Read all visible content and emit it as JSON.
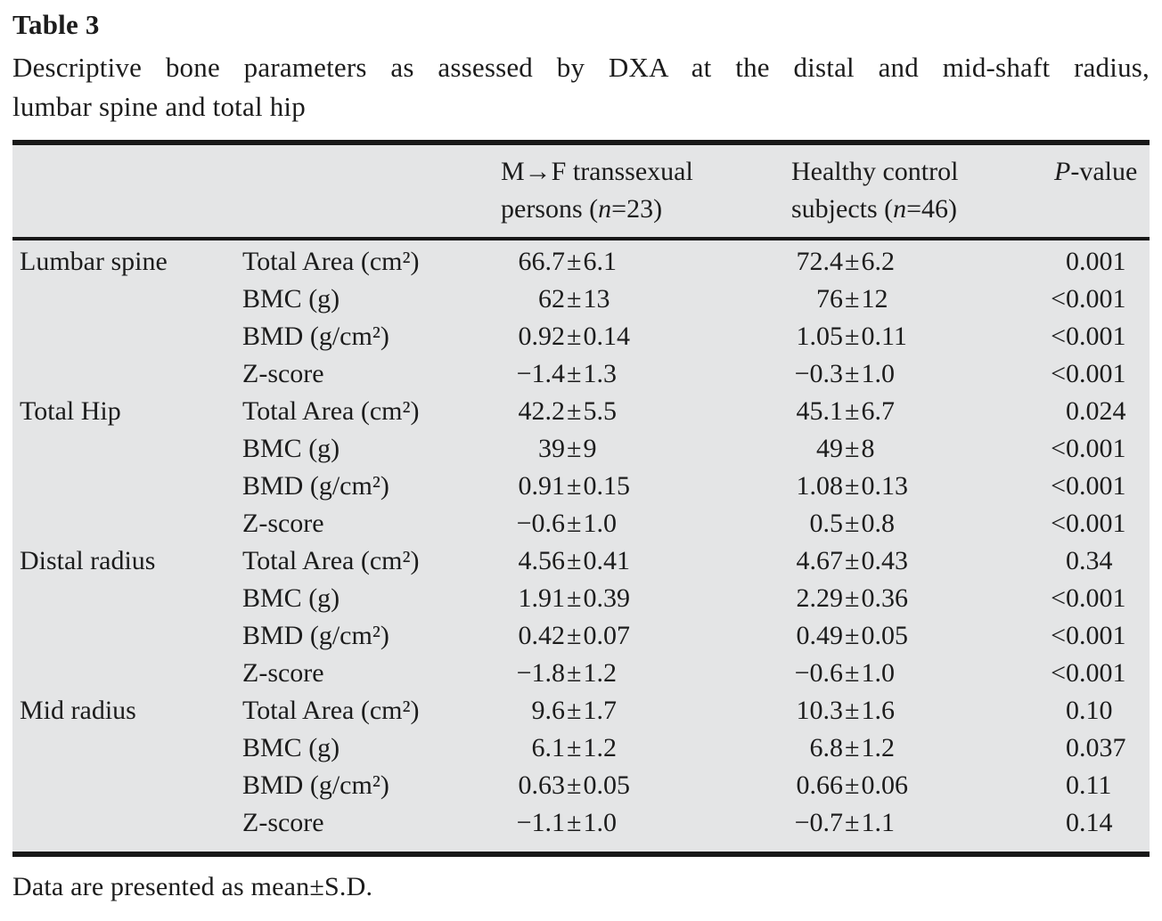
{
  "title": "Table 3",
  "caption": {
    "line1": "Descriptive bone parameters as assessed by DXA at the distal and mid-shaft radius,",
    "line2": "lumbar spine and total hip"
  },
  "footnote": "Data are presented as mean±S.D.",
  "table": {
    "pm": "±",
    "header": {
      "group1": {
        "line1": "M→F transsexual",
        "line2_pre": "persons (",
        "n": "n",
        "line2_post": "=23)"
      },
      "group2": {
        "line1": "Healthy control",
        "line2_pre": "subjects (",
        "n": "n",
        "line2_post": "=46)"
      },
      "pcol": {
        "p": "P",
        "suffix": "-value"
      }
    },
    "rows": [
      {
        "region": "Lumbar spine",
        "param": "Total Area (cm²)",
        "g1_mean": "66.7",
        "g1_sd": "6.1",
        "g2_mean": "72.4",
        "g2_sd": "6.2",
        "p_prefix": "",
        "p_value": "0.001"
      },
      {
        "region": "",
        "param": "BMC (g)",
        "g1_mean": "62",
        "g1_sd": "13",
        "g2_mean": "76",
        "g2_sd": "12",
        "p_prefix": "<",
        "p_value": "0.001"
      },
      {
        "region": "",
        "param": "BMD (g/cm²)",
        "g1_mean": "0.92",
        "g1_sd": "0.14",
        "g2_mean": "1.05",
        "g2_sd": "0.11",
        "p_prefix": "<",
        "p_value": "0.001"
      },
      {
        "region": "",
        "param": "Z-score",
        "g1_mean": "−1.4",
        "g1_sd": "1.3",
        "g2_mean": "−0.3",
        "g2_sd": "1.0",
        "p_prefix": "<",
        "p_value": "0.001"
      },
      {
        "region": "Total Hip",
        "param": "Total Area (cm²)",
        "g1_mean": "42.2",
        "g1_sd": "5.5",
        "g2_mean": "45.1",
        "g2_sd": "6.7",
        "p_prefix": "",
        "p_value": "0.024"
      },
      {
        "region": "",
        "param": "BMC (g)",
        "g1_mean": "39",
        "g1_sd": "9",
        "g2_mean": "49",
        "g2_sd": "8",
        "p_prefix": "<",
        "p_value": "0.001"
      },
      {
        "region": "",
        "param": "BMD (g/cm²)",
        "g1_mean": "0.91",
        "g1_sd": "0.15",
        "g2_mean": "1.08",
        "g2_sd": "0.13",
        "p_prefix": "<",
        "p_value": "0.001"
      },
      {
        "region": "",
        "param": "Z-score",
        "g1_mean": "−0.6",
        "g1_sd": "1.0",
        "g2_mean": "0.5",
        "g2_sd": "0.8",
        "p_prefix": "<",
        "p_value": "0.001"
      },
      {
        "region": "Distal radius",
        "param": "Total Area (cm²)",
        "g1_mean": "4.56",
        "g1_sd": "0.41",
        "g2_mean": "4.67",
        "g2_sd": "0.43",
        "p_prefix": "",
        "p_value": "0.34"
      },
      {
        "region": "",
        "param": "BMC (g)",
        "g1_mean": "1.91",
        "g1_sd": "0.39",
        "g2_mean": "2.29",
        "g2_sd": "0.36",
        "p_prefix": "<",
        "p_value": "0.001"
      },
      {
        "region": "",
        "param": "BMD (g/cm²)",
        "g1_mean": "0.42",
        "g1_sd": "0.07",
        "g2_mean": "0.49",
        "g2_sd": "0.05",
        "p_prefix": "<",
        "p_value": "0.001"
      },
      {
        "region": "",
        "param": "Z-score",
        "g1_mean": "−1.8",
        "g1_sd": "1.2",
        "g2_mean": "−0.6",
        "g2_sd": "1.0",
        "p_prefix": "<",
        "p_value": "0.001"
      },
      {
        "region": "Mid radius",
        "param": "Total Area (cm²)",
        "g1_mean": "9.6",
        "g1_sd": "1.7",
        "g2_mean": "10.3",
        "g2_sd": "1.6",
        "p_prefix": "",
        "p_value": "0.10"
      },
      {
        "region": "",
        "param": "BMC (g)",
        "g1_mean": "6.1",
        "g1_sd": "1.2",
        "g2_mean": "6.8",
        "g2_sd": "1.2",
        "p_prefix": "",
        "p_value": "0.037"
      },
      {
        "region": "",
        "param": "BMD (g/cm²)",
        "g1_mean": "0.63",
        "g1_sd": "0.05",
        "g2_mean": "0.66",
        "g2_sd": "0.06",
        "p_prefix": "",
        "p_value": "0.11"
      },
      {
        "region": "",
        "param": "Z-score",
        "g1_mean": "−1.1",
        "g1_sd": "1.0",
        "g2_mean": "−0.7",
        "g2_sd": "1.1",
        "p_prefix": "",
        "p_value": "0.14"
      }
    ]
  },
  "colors": {
    "table_background": "#e4e5e6",
    "rule": "#181818",
    "text": "#1c1c1c",
    "page_background": "#ffffff"
  }
}
